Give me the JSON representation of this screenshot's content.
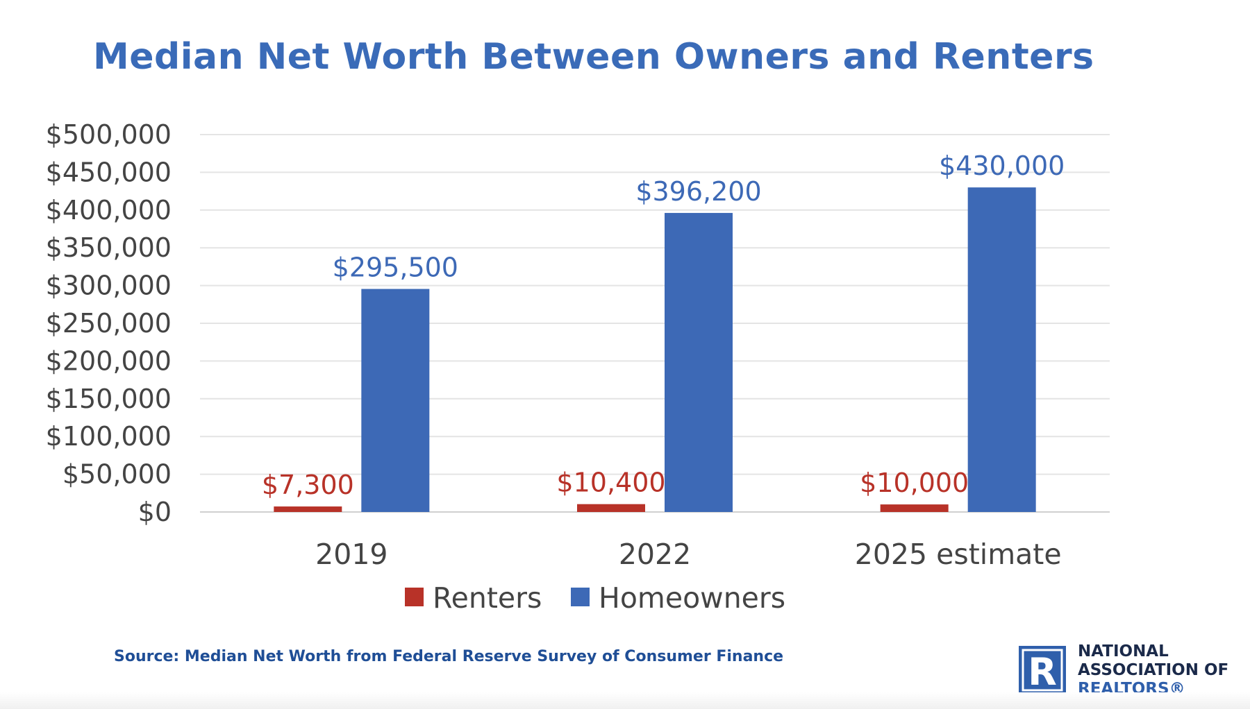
{
  "chart_data": {
    "type": "bar",
    "title": "Median Net Worth Between Owners and Renters",
    "categories": [
      "2019",
      "2022",
      "2025 estimate"
    ],
    "series": [
      {
        "name": "Renters",
        "values": [
          7300,
          10400,
          10000
        ],
        "labels": [
          "$7,300",
          "$10,400",
          "$10,000"
        ],
        "color": "#b83228"
      },
      {
        "name": "Homeowners",
        "values": [
          295500,
          396200,
          430000
        ],
        "labels": [
          "$295,500",
          "$396,200",
          "$430,000"
        ],
        "color": "#3d69b6"
      }
    ],
    "ylim": [
      0,
      500000
    ],
    "yticks": [
      0,
      50000,
      100000,
      150000,
      200000,
      250000,
      300000,
      350000,
      400000,
      450000,
      500000
    ],
    "ytick_labels": [
      "$0",
      "$50,000",
      "$100,000",
      "$150,000",
      "$200,000",
      "$250,000",
      "$300,000",
      "$350,000",
      "$400,000",
      "$450,000",
      "$500,000"
    ],
    "grid": true,
    "legend_position": "bottom"
  },
  "source": "Source: Median Net Worth from Federal Reserve Survey of Consumer Finance",
  "logo": {
    "mark": "R",
    "lines": [
      "NATIONAL",
      "ASSOCIATION OF",
      "REALTORS®"
    ]
  }
}
